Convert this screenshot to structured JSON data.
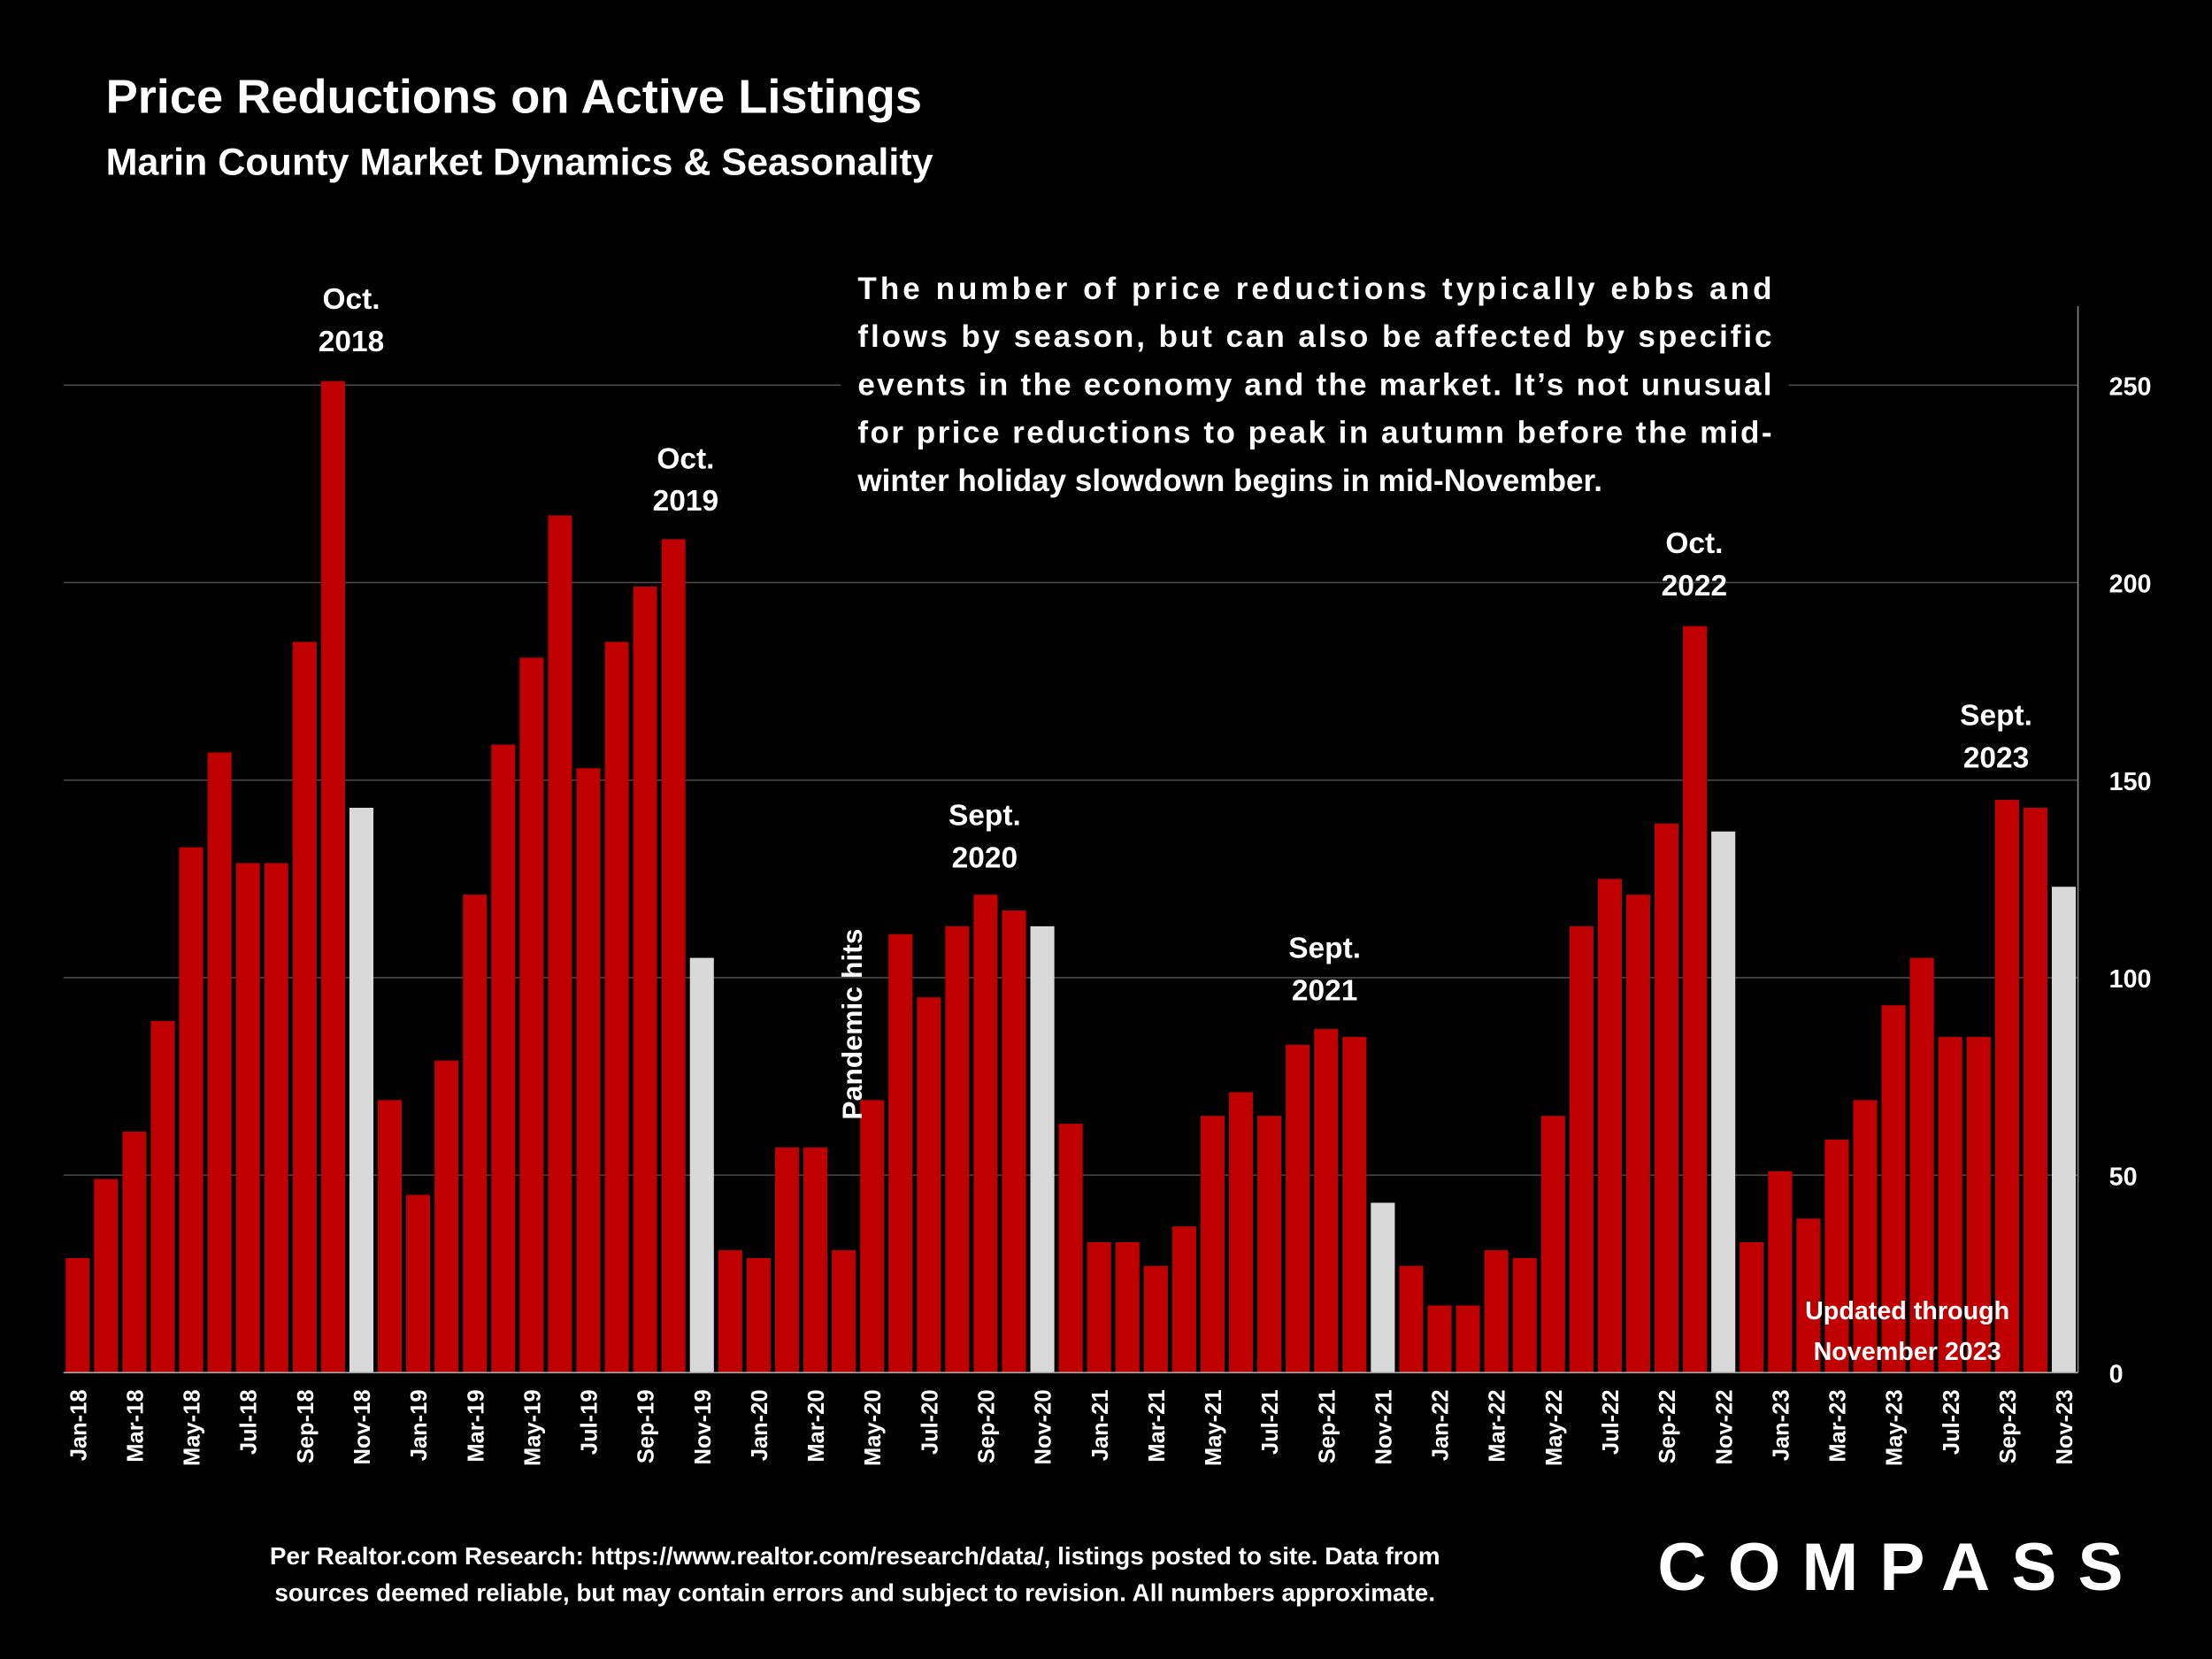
{
  "chart_data": {
    "type": "bar",
    "title": "Price Reductions on Active Listings",
    "subtitle": "Marin County Market Dynamics & Seasonality",
    "categories": [
      "Jan-18",
      null,
      "Mar-18",
      null,
      "May-18",
      null,
      "Jul-18",
      null,
      "Sep-18",
      null,
      "Nov-18",
      null,
      "Jan-19",
      null,
      "Mar-19",
      null,
      "May-19",
      null,
      "Jul-19",
      null,
      "Sep-19",
      null,
      "Nov-19",
      null,
      "Jan-20",
      null,
      "Mar-20",
      null,
      "May-20",
      null,
      "Jul-20",
      null,
      "Sep-20",
      null,
      "Nov-20",
      null,
      "Jan-21",
      null,
      "Mar-21",
      null,
      "May-21",
      null,
      "Jul-21",
      null,
      "Sep-21",
      null,
      "Nov-21",
      null,
      "Jan-22",
      null,
      "Mar-22",
      null,
      "May-22",
      null,
      "Jul-22",
      null,
      "Sep-22",
      null,
      "Nov-22",
      null,
      "Jan-23",
      null,
      "Mar-23",
      null,
      "May-23",
      null,
      "Jul-23",
      null,
      "Sep-23",
      null,
      "Nov-23"
    ],
    "values": [
      29,
      49,
      61,
      89,
      133,
      157,
      129,
      129,
      185,
      251,
      143,
      69,
      45,
      79,
      121,
      159,
      181,
      217,
      153,
      185,
      199,
      211,
      105,
      31,
      29,
      57,
      57,
      31,
      69,
      111,
      95,
      113,
      121,
      117,
      113,
      63,
      33,
      33,
      27,
      37,
      65,
      71,
      65,
      83,
      87,
      85,
      43,
      27,
      17,
      17,
      31,
      29,
      65,
      113,
      125,
      121,
      139,
      189,
      137,
      33,
      51,
      39,
      59,
      69,
      93,
      105,
      85,
      85,
      145,
      143,
      123
    ],
    "colors": [
      "#c00000",
      "#c00000",
      "#c00000",
      "#c00000",
      "#c00000",
      "#c00000",
      "#c00000",
      "#c00000",
      "#c00000",
      "#c00000",
      "#d9d9d9",
      "#c00000",
      "#c00000",
      "#c00000",
      "#c00000",
      "#c00000",
      "#c00000",
      "#c00000",
      "#c00000",
      "#c00000",
      "#c00000",
      "#c00000",
      "#d9d9d9",
      "#c00000",
      "#c00000",
      "#c00000",
      "#c00000",
      "#c00000",
      "#c00000",
      "#c00000",
      "#c00000",
      "#c00000",
      "#c00000",
      "#c00000",
      "#d9d9d9",
      "#c00000",
      "#c00000",
      "#c00000",
      "#c00000",
      "#c00000",
      "#c00000",
      "#c00000",
      "#c00000",
      "#c00000",
      "#c00000",
      "#c00000",
      "#d9d9d9",
      "#c00000",
      "#c00000",
      "#c00000",
      "#c00000",
      "#c00000",
      "#c00000",
      "#c00000",
      "#c00000",
      "#c00000",
      "#c00000",
      "#c00000",
      "#d9d9d9",
      "#c00000",
      "#c00000",
      "#c00000",
      "#c00000",
      "#c00000",
      "#c00000",
      "#c00000",
      "#c00000",
      "#c00000",
      "#c00000",
      "#c00000",
      "#d9d9d9"
    ],
    "ylim": [
      0,
      270
    ],
    "yticks": [
      0,
      50,
      100,
      150,
      200,
      250
    ],
    "grid": true,
    "annotations": [
      [
        "Oct.",
        "2018"
      ],
      [
        "Oct.",
        "2019"
      ],
      [
        "Sept.",
        "2020"
      ],
      [
        "Sept.",
        "2021"
      ],
      [
        "Oct.",
        "2022"
      ],
      [
        "Sept.",
        "2023"
      ]
    ],
    "note": [
      "The number of price reductions typically ebbs and",
      "flows by season, but can also be affected by specific",
      "events in the economy and the market. It’s not unusual",
      "for price reductions to peak in autumn before the mid-",
      "winter holiday slowdown begins in mid-November."
    ],
    "pandemic_label": "Pandemic hits",
    "updated_label": [
      "Updated through",
      "November 2023"
    ]
  },
  "footer": {
    "source": [
      "Per Realtor.com Research:  https://www.realtor.com/research/data/, listings posted to site. Data from",
      "sources deemed reliable, but may contain errors and subject to revision. All numbers approximate."
    ],
    "logo": "COMPASS"
  }
}
